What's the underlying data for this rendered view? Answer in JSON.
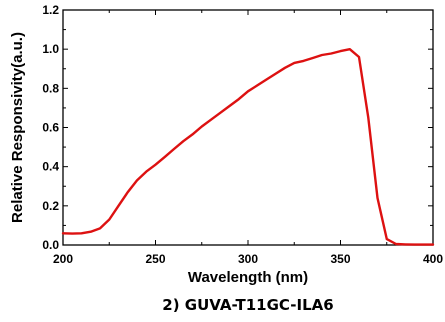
{
  "chart_data": {
    "type": "line",
    "title": "",
    "caption": "2) GUVA-T11GC-ILA6",
    "xlabel": "Wavelength (nm)",
    "ylabel": "Relative Responsivity(a.u.)",
    "xlim": [
      200,
      400
    ],
    "ylim": [
      0,
      1.2
    ],
    "xticks": [
      "200",
      "250",
      "300",
      "350",
      "400"
    ],
    "yticks": [
      "0.0",
      "0.2",
      "0.4",
      "0.6",
      "0.8",
      "1.0",
      "1.2"
    ],
    "grid": false,
    "series": [
      {
        "color": "#dd1111",
        "x": [
          200,
          205,
          210,
          215,
          220,
          225,
          230,
          235,
          240,
          245,
          250,
          255,
          260,
          265,
          270,
          275,
          280,
          285,
          290,
          295,
          300,
          305,
          310,
          315,
          320,
          325,
          330,
          335,
          340,
          345,
          350,
          355,
          360,
          365,
          370,
          375,
          380,
          385,
          390,
          395,
          400
        ],
        "y": [
          0.06,
          0.058,
          0.06,
          0.068,
          0.085,
          0.13,
          0.2,
          0.27,
          0.33,
          0.375,
          0.41,
          0.45,
          0.49,
          0.53,
          0.565,
          0.605,
          0.64,
          0.675,
          0.71,
          0.745,
          0.785,
          0.815,
          0.845,
          0.875,
          0.905,
          0.93,
          0.94,
          0.955,
          0.97,
          0.978,
          0.99,
          1.0,
          0.96,
          0.65,
          0.24,
          0.03,
          0.005,
          0.003,
          0.002,
          0.002,
          0.002
        ]
      }
    ]
  }
}
